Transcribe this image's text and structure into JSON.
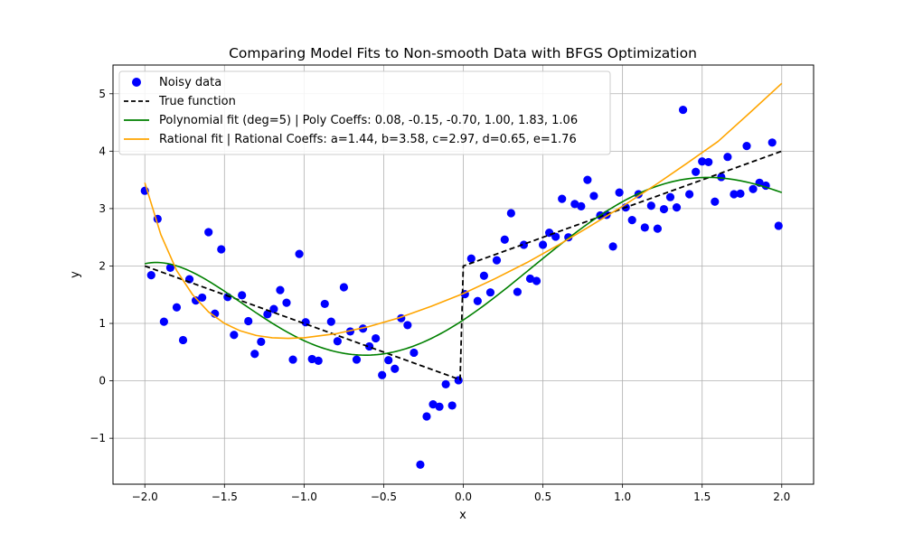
{
  "chart_data": {
    "type": "scatter",
    "title": "Comparing Model Fits to Non-smooth Data with BFGS Optimization",
    "xlabel": "x",
    "ylabel": "y",
    "xlim": [
      -2.2,
      2.2
    ],
    "ylim": [
      -1.8,
      5.5
    ],
    "xticks": [
      -2.0,
      -1.5,
      -1.0,
      -0.5,
      0.0,
      0.5,
      1.0,
      1.5,
      2.0
    ],
    "xtick_labels": [
      "−2.0",
      "−1.5",
      "−1.0",
      "−0.5",
      "0.0",
      "0.5",
      "1.0",
      "1.5",
      "2.0"
    ],
    "yticks": [
      -1,
      0,
      1,
      2,
      3,
      4,
      5
    ],
    "ytick_labels": [
      "−1",
      "0",
      "1",
      "2",
      "3",
      "4",
      "5"
    ],
    "grid": true,
    "legend_position": "top-left",
    "colors": {
      "scatter": "#0000ff",
      "true_function": "#000000",
      "polynomial": "#008000",
      "rational": "#ffa500",
      "grid": "#b0b0b0"
    },
    "series": [
      {
        "name": "Noisy data",
        "kind": "scatter",
        "points": [
          [
            -2.0,
            3.31
          ],
          [
            -1.96,
            1.84
          ],
          [
            -1.92,
            2.82
          ],
          [
            -1.88,
            1.03
          ],
          [
            -1.84,
            1.97
          ],
          [
            -1.8,
            1.28
          ],
          [
            -1.76,
            0.71
          ],
          [
            -1.72,
            1.77
          ],
          [
            -1.68,
            1.4
          ],
          [
            -1.64,
            1.45
          ],
          [
            -1.6,
            2.59
          ],
          [
            -1.56,
            1.17
          ],
          [
            -1.52,
            2.29
          ],
          [
            -1.48,
            1.46
          ],
          [
            -1.44,
            0.8
          ],
          [
            -1.39,
            1.49
          ],
          [
            -1.35,
            1.04
          ],
          [
            -1.31,
            0.47
          ],
          [
            -1.27,
            0.68
          ],
          [
            -1.23,
            1.16
          ],
          [
            -1.19,
            1.25
          ],
          [
            -1.15,
            1.58
          ],
          [
            -1.11,
            1.36
          ],
          [
            -1.07,
            0.37
          ],
          [
            -1.03,
            2.21
          ],
          [
            -0.99,
            1.02
          ],
          [
            -0.95,
            0.38
          ],
          [
            -0.91,
            0.35
          ],
          [
            -0.87,
            1.34
          ],
          [
            -0.83,
            1.03
          ],
          [
            -0.79,
            0.69
          ],
          [
            -0.75,
            1.63
          ],
          [
            -0.71,
            0.86
          ],
          [
            -0.67,
            0.37
          ],
          [
            -0.63,
            0.91
          ],
          [
            -0.59,
            0.6
          ],
          [
            -0.55,
            0.74
          ],
          [
            -0.51,
            0.1
          ],
          [
            -0.47,
            0.36
          ],
          [
            -0.43,
            0.21
          ],
          [
            -0.39,
            1.09
          ],
          [
            -0.35,
            0.97
          ],
          [
            -0.31,
            0.49
          ],
          [
            -0.27,
            -1.46
          ],
          [
            -0.23,
            -0.62
          ],
          [
            -0.19,
            -0.41
          ],
          [
            -0.15,
            -0.45
          ],
          [
            -0.11,
            -0.06
          ],
          [
            -0.07,
            -0.43
          ],
          [
            -0.03,
            0.01
          ],
          [
            0.01,
            1.51
          ],
          [
            0.05,
            2.13
          ],
          [
            0.09,
            1.39
          ],
          [
            0.13,
            1.83
          ],
          [
            0.17,
            1.54
          ],
          [
            0.21,
            2.1
          ],
          [
            0.26,
            2.46
          ],
          [
            0.3,
            2.92
          ],
          [
            0.34,
            1.55
          ],
          [
            0.38,
            2.37
          ],
          [
            0.42,
            1.78
          ],
          [
            0.46,
            1.74
          ],
          [
            0.5,
            2.37
          ],
          [
            0.54,
            2.58
          ],
          [
            0.58,
            2.51
          ],
          [
            0.62,
            3.17
          ],
          [
            0.66,
            2.5
          ],
          [
            0.7,
            3.08
          ],
          [
            0.74,
            3.04
          ],
          [
            0.78,
            3.5
          ],
          [
            0.82,
            3.22
          ],
          [
            0.86,
            2.88
          ],
          [
            0.9,
            2.89
          ],
          [
            0.94,
            2.34
          ],
          [
            0.98,
            3.28
          ],
          [
            1.02,
            3.02
          ],
          [
            1.06,
            2.8
          ],
          [
            1.1,
            3.25
          ],
          [
            1.14,
            2.67
          ],
          [
            1.18,
            3.05
          ],
          [
            1.22,
            2.65
          ],
          [
            1.26,
            2.99
          ],
          [
            1.3,
            3.2
          ],
          [
            1.34,
            3.02
          ],
          [
            1.38,
            4.72
          ],
          [
            1.42,
            3.25
          ],
          [
            1.46,
            3.64
          ],
          [
            1.5,
            3.82
          ],
          [
            1.54,
            3.81
          ],
          [
            1.58,
            3.12
          ],
          [
            1.62,
            3.55
          ],
          [
            1.66,
            3.9
          ],
          [
            1.7,
            3.25
          ],
          [
            1.74,
            3.26
          ],
          [
            1.78,
            4.09
          ],
          [
            1.82,
            3.34
          ],
          [
            1.86,
            3.45
          ],
          [
            1.9,
            3.4
          ],
          [
            1.94,
            4.15
          ],
          [
            1.98,
            2.7
          ]
        ]
      },
      {
        "name": "True function",
        "kind": "line-dashed",
        "points": [
          [
            -2.0,
            2.0
          ],
          [
            -0.02,
            0.02
          ],
          [
            0.0,
            2.0
          ],
          [
            2.0,
            4.0
          ]
        ]
      },
      {
        "name": "Polynomial fit (deg=5) | Poly Coeffs: 0.08, -0.15, -0.70, 1.00, 1.83, 1.06",
        "kind": "line",
        "formula": "poly5",
        "coefficients": [
          0.08,
          -0.15,
          -0.7,
          1.0,
          1.83,
          1.06
        ]
      },
      {
        "name": "Rational fit | Rational Coeffs: a=1.44, b=3.58, c=2.97, d=0.65, e=1.76",
        "kind": "line",
        "points": [
          [
            -2.0,
            3.45
          ],
          [
            -1.9,
            2.55
          ],
          [
            -1.8,
            1.92
          ],
          [
            -1.7,
            1.5
          ],
          [
            -1.6,
            1.2
          ],
          [
            -1.5,
            1.0
          ],
          [
            -1.4,
            0.87
          ],
          [
            -1.3,
            0.79
          ],
          [
            -1.2,
            0.75
          ],
          [
            -1.1,
            0.74
          ],
          [
            -1.0,
            0.75
          ],
          [
            -0.8,
            0.82
          ],
          [
            -0.6,
            0.94
          ],
          [
            -0.4,
            1.1
          ],
          [
            -0.2,
            1.3
          ],
          [
            0.0,
            1.52
          ],
          [
            0.2,
            1.78
          ],
          [
            0.4,
            2.06
          ],
          [
            0.6,
            2.37
          ],
          [
            0.8,
            2.7
          ],
          [
            1.0,
            3.04
          ],
          [
            1.2,
            3.4
          ],
          [
            1.4,
            3.78
          ],
          [
            1.6,
            4.17
          ],
          [
            1.8,
            4.67
          ],
          [
            2.0,
            5.18
          ]
        ]
      }
    ]
  }
}
